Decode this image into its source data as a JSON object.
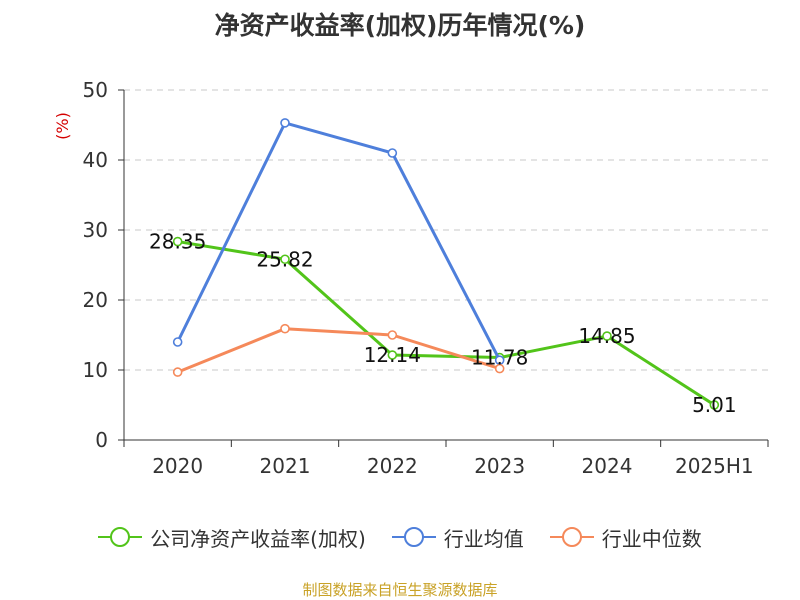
{
  "chart_data": {
    "type": "line",
    "title": "净资产收益率(加权)历年情况(%)",
    "ylabel": "(%)",
    "categories": [
      "2020",
      "2021",
      "2022",
      "2023",
      "2024",
      "2025H1"
    ],
    "ylim": [
      0,
      50
    ],
    "yticks": [
      "0",
      "10",
      "20",
      "30",
      "40",
      "50"
    ],
    "grid": true,
    "legend_position": "bottom",
    "series": [
      {
        "name": "公司净资产收益率(加权)",
        "color": "#52c41a",
        "values": [
          28.35,
          25.82,
          12.14,
          11.78,
          14.85,
          5.01
        ],
        "labels": [
          "28.35",
          "25.82",
          "12.14",
          "11.78",
          "14.85",
          "5.01"
        ]
      },
      {
        "name": "行业均值",
        "color": "#4e7fdb",
        "values": [
          14.0,
          45.3,
          41.0,
          11.4,
          null,
          null
        ]
      },
      {
        "name": "行业中位数",
        "color": "#f5895a",
        "values": [
          9.7,
          15.9,
          15.0,
          10.2,
          null,
          null
        ]
      }
    ]
  },
  "footer": {
    "source": "制图数据来自恒生聚源数据库"
  }
}
